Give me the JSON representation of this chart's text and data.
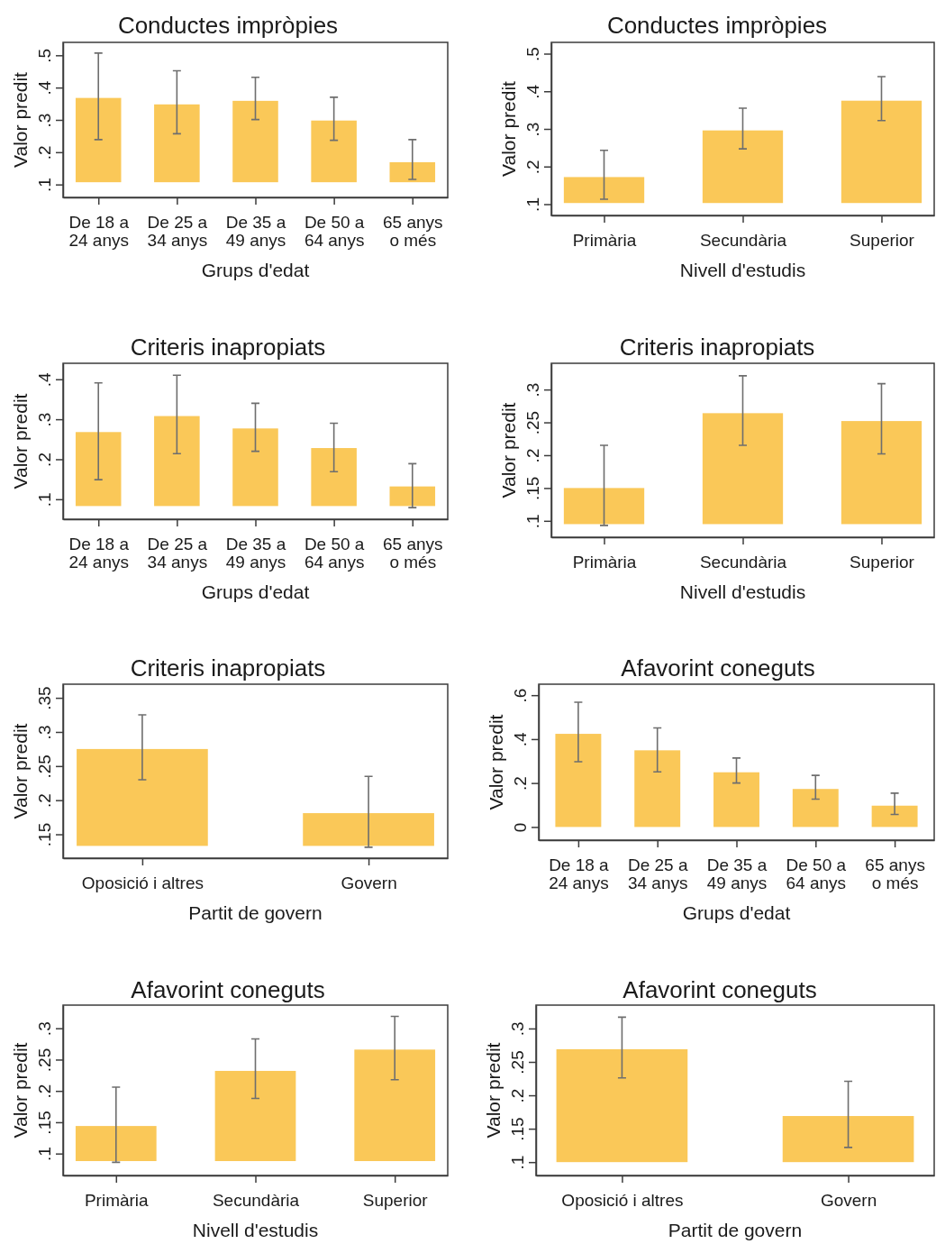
{
  "chart_data": [
    {
      "type": "bar",
      "title": "Conductes impròpies",
      "xlabel": "Grups d'edat",
      "ylabel": "Valor predit",
      "categories": [
        "De 18 a 24 anys",
        "De 25 a 34 anys",
        "De 35 a 49 anys",
        "De 50 a 64 anys",
        "65 anys o més"
      ],
      "base": [
        0.107,
        0.107,
        0.107,
        0.107,
        0.107
      ],
      "values": [
        0.261,
        0.241,
        0.252,
        0.191,
        0.062
      ],
      "errors": [
        [
          0.239,
          0.507
        ],
        [
          0.257,
          0.452
        ],
        [
          0.301,
          0.432
        ],
        [
          0.237,
          0.37
        ],
        [
          0.116,
          0.239
        ]
      ],
      "color": "#fac858",
      "ylim": [
        0.06,
        0.54
      ],
      "yticks": [
        {
          "value": 0.1,
          "label": ".1"
        },
        {
          "value": 0.2,
          "label": ".2"
        },
        {
          "value": 0.3,
          "label": ".3"
        },
        {
          "value": 0.4,
          "label": ".4"
        },
        {
          "value": 0.5,
          "label": ".5"
        }
      ]
    },
    {
      "type": "bar",
      "title": "Conductes impròpies",
      "xlabel": "Nivell d'estudis",
      "ylabel": "Valor predit",
      "categories": [
        "Primària",
        "Secundària",
        "Superior"
      ],
      "base": [
        0.103,
        0.103,
        0.103
      ],
      "values": [
        0.069,
        0.193,
        0.272
      ],
      "errors": [
        [
          0.113,
          0.243
        ],
        [
          0.247,
          0.355
        ],
        [
          0.322,
          0.439
        ]
      ],
      "color": "#fac858",
      "ylim": [
        0.07,
        0.53
      ],
      "yticks": [
        {
          "value": 0.1,
          "label": ".1"
        },
        {
          "value": 0.2,
          "label": ".2"
        },
        {
          "value": 0.3,
          "label": ".3"
        },
        {
          "value": 0.4,
          "label": ".4"
        },
        {
          "value": 0.5,
          "label": ".5"
        }
      ]
    },
    {
      "type": "bar",
      "title": "Criteris inapropiats",
      "xlabel": "Grups d'edat",
      "ylabel": "Valor predit",
      "categories": [
        "De 18 a 24 anys",
        "De 25 a 34 anys",
        "De 35 a 49 anys",
        "De 50 a 64 anys",
        "65 anys o més"
      ],
      "base": [
        0.083,
        0.083,
        0.083,
        0.083,
        0.083
      ],
      "values": [
        0.185,
        0.225,
        0.194,
        0.145,
        0.049
      ],
      "errors": [
        [
          0.149,
          0.391
        ],
        [
          0.214,
          0.41
        ],
        [
          0.22,
          0.34
        ],
        [
          0.169,
          0.29
        ],
        [
          0.079,
          0.189
        ]
      ],
      "color": "#fac858",
      "ylim": [
        0.05,
        0.44
      ],
      "yticks": [
        {
          "value": 0.1,
          "label": ".1"
        },
        {
          "value": 0.2,
          "label": ".2"
        },
        {
          "value": 0.3,
          "label": ".3"
        },
        {
          "value": 0.4,
          "label": ".4"
        }
      ]
    },
    {
      "type": "bar",
      "title": "Criteris inapropiats",
      "xlabel": "Nivell d'estudis",
      "ylabel": "Valor predit",
      "categories": [
        "Primària",
        "Secundària",
        "Superior"
      ],
      "base": [
        0.095,
        0.095,
        0.095
      ],
      "values": [
        0.055,
        0.169,
        0.157
      ],
      "errors": [
        [
          0.093,
          0.215
        ],
        [
          0.215,
          0.321
        ],
        [
          0.202,
          0.309
        ]
      ],
      "color": "#fac858",
      "ylim": [
        0.075,
        0.34
      ],
      "yticks": [
        {
          "value": 0.1,
          "label": ".1"
        },
        {
          "value": 0.15,
          "label": ".15"
        },
        {
          "value": 0.2,
          "label": ".2"
        },
        {
          "value": 0.25,
          "label": ".25"
        },
        {
          "value": 0.3,
          "label": ".3"
        }
      ]
    },
    {
      "type": "bar",
      "title": "Criteris inapropiats",
      "xlabel": "Partit de govern",
      "ylabel": "Valor predit",
      "categories": [
        "Oposició i altres",
        "Govern"
      ],
      "base": [
        0.133,
        0.133
      ],
      "values": [
        0.142,
        0.048
      ],
      "errors": [
        [
          0.23,
          0.325
        ],
        [
          0.131,
          0.235
        ]
      ],
      "color": "#fac858",
      "ylim": [
        0.115,
        0.37
      ],
      "yticks": [
        {
          "value": 0.15,
          "label": ".15"
        },
        {
          "value": 0.2,
          "label": ".2"
        },
        {
          "value": 0.25,
          "label": ".25"
        },
        {
          "value": 0.3,
          "label": ".3"
        },
        {
          "value": 0.35,
          "label": ".35"
        }
      ]
    },
    {
      "type": "bar",
      "title": "Afavorint coneguts",
      "xlabel": "Grups d'edat",
      "ylabel": "Valor predit",
      "categories": [
        "De 18 a 24 anys",
        "De 25 a 34 anys",
        "De 35 a 49 anys",
        "De 50 a 64 anys",
        "65 anys o més"
      ],
      "values": [
        0.424,
        0.349,
        0.249,
        0.173,
        0.097
      ],
      "errors": [
        [
          0.297,
          0.568
        ],
        [
          0.251,
          0.451
        ],
        [
          0.2,
          0.314
        ],
        [
          0.127,
          0.235
        ],
        [
          0.057,
          0.154
        ]
      ],
      "color": "#fac858",
      "ylim": [
        -0.06,
        0.65
      ],
      "yticks": [
        0,
        {
          "value": 0.2,
          "label": ".2"
        },
        {
          "value": 0.4,
          "label": ".4"
        },
        {
          "value": 0.6,
          "label": ".6"
        }
      ]
    },
    {
      "type": "bar",
      "title": "Afavorint coneguts",
      "xlabel": "Nivell d'estudis",
      "ylabel": "Valor predit",
      "categories": [
        "Primària",
        "Secundària",
        "Superior"
      ],
      "base": [
        0.088,
        0.088,
        0.088
      ],
      "values": [
        0.056,
        0.144,
        0.178
      ],
      "errors": [
        [
          0.086,
          0.206
        ],
        [
          0.188,
          0.283
        ],
        [
          0.218,
          0.319
        ]
      ],
      "color": "#fac858",
      "ylim": [
        0.065,
        0.337
      ],
      "yticks": [
        {
          "value": 0.1,
          "label": ".1"
        },
        {
          "value": 0.15,
          "label": ".15"
        },
        {
          "value": 0.2,
          "label": ".2"
        },
        {
          "value": 0.25,
          "label": ".25"
        },
        {
          "value": 0.3,
          "label": ".3"
        }
      ]
    },
    {
      "type": "bar",
      "title": "Afavorint coneguts",
      "xlabel": "Partit de govern",
      "ylabel": "Valor predit",
      "categories": [
        "Oposició i altres",
        "Govern"
      ],
      "base": [
        0.1,
        0.1
      ],
      "values": [
        0.169,
        0.069
      ],
      "errors": [
        [
          0.226,
          0.317
        ],
        [
          0.122,
          0.221
        ]
      ],
      "color": "#fac858",
      "ylim": [
        0.08,
        0.335
      ],
      "yticks": [
        {
          "value": 0.1,
          "label": ".1"
        },
        {
          "value": 0.15,
          "label": ".15"
        },
        {
          "value": 0.2,
          "label": ".2"
        },
        {
          "value": 0.25,
          "label": ".25"
        },
        {
          "value": 0.3,
          "label": ".3"
        }
      ]
    }
  ]
}
